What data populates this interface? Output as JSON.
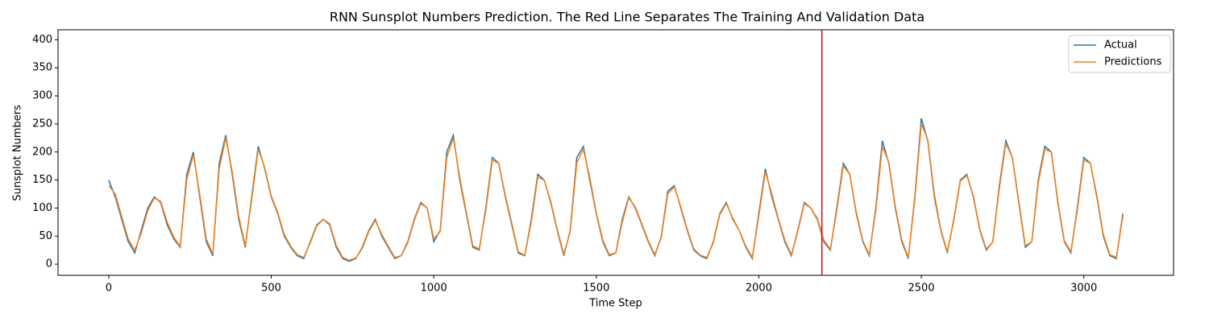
{
  "chart_data": {
    "type": "line",
    "title": "RNN Sunsplot Numbers Prediction.  The Red Line Separates The Training And Validation Data",
    "xlabel": "Time Step",
    "ylabel": "Sunsplot Numbers",
    "xlim": [
      -156,
      3276
    ],
    "ylim": [
      -19.9,
      417.8
    ],
    "xticks": [
      0,
      500,
      1000,
      1500,
      2000,
      2500,
      3000
    ],
    "yticks": [
      0,
      50,
      100,
      150,
      200,
      250,
      300,
      350,
      400
    ],
    "legend": "upper right",
    "vline": {
      "x": 2194,
      "color": "#e00000"
    },
    "x": [
      0,
      20,
      40,
      60,
      80,
      100,
      120,
      140,
      160,
      180,
      200,
      220,
      240,
      260,
      280,
      300,
      320,
      340,
      360,
      380,
      400,
      420,
      440,
      460,
      480,
      500,
      520,
      540,
      560,
      580,
      600,
      620,
      640,
      660,
      680,
      700,
      720,
      740,
      760,
      780,
      800,
      820,
      840,
      860,
      880,
      900,
      920,
      940,
      960,
      980,
      1000,
      1020,
      1040,
      1060,
      1080,
      1100,
      1120,
      1140,
      1160,
      1180,
      1200,
      1220,
      1240,
      1260,
      1280,
      1300,
      1320,
      1340,
      1360,
      1380,
      1400,
      1420,
      1440,
      1460,
      1480,
      1500,
      1520,
      1540,
      1560,
      1580,
      1600,
      1620,
      1640,
      1660,
      1680,
      1700,
      1720,
      1740,
      1760,
      1780,
      1800,
      1820,
      1840,
      1860,
      1880,
      1900,
      1920,
      1940,
      1960,
      1980,
      2000,
      2020,
      2040,
      2060,
      2080,
      2100,
      2120,
      2140,
      2160,
      2180,
      2200,
      2220,
      2240,
      2260,
      2280,
      2300,
      2320,
      2340,
      2360,
      2380,
      2400,
      2420,
      2440,
      2460,
      2480,
      2500,
      2520,
      2540,
      2560,
      2580,
      2600,
      2620,
      2640,
      2660,
      2680,
      2700,
      2720,
      2740,
      2760,
      2780,
      2800,
      2820,
      2840,
      2860,
      2880,
      2900,
      2920,
      2940,
      2960,
      2980,
      3000,
      3020,
      3040,
      3060,
      3080,
      3100,
      3120
    ],
    "series": [
      {
        "name": "Actual",
        "color": "#1f77b4",
        "values": [
          150,
          120,
          80,
          40,
          20,
          60,
          100,
          120,
          110,
          70,
          45,
          30,
          160,
          200,
          120,
          40,
          15,
          180,
          230,
          160,
          80,
          30,
          120,
          210,
          170,
          120,
          90,
          50,
          30,
          15,
          10,
          40,
          70,
          80,
          70,
          30,
          10,
          5,
          10,
          30,
          60,
          80,
          50,
          30,
          10,
          15,
          40,
          80,
          110,
          100,
          40,
          60,
          200,
          230,
          150,
          90,
          30,
          25,
          100,
          190,
          180,
          120,
          70,
          20,
          15,
          80,
          160,
          150,
          110,
          60,
          15,
          60,
          190,
          210,
          150,
          90,
          40,
          15,
          20,
          80,
          120,
          100,
          70,
          40,
          15,
          50,
          130,
          140,
          100,
          60,
          25,
          15,
          10,
          40,
          90,
          110,
          80,
          60,
          30,
          10,
          90,
          170,
          120,
          80,
          40,
          15,
          60,
          110,
          100,
          80,
          40,
          25,
          100,
          180,
          160,
          90,
          40,
          15,
          100,
          220,
          180,
          100,
          40,
          10,
          120,
          260,
          220,
          120,
          60,
          20,
          80,
          150,
          160,
          120,
          60,
          25,
          40,
          140,
          220,
          190,
          110,
          30,
          40,
          150,
          210,
          200,
          110,
          40,
          20,
          100,
          190,
          180,
          120,
          50,
          15,
          10,
          90
        ]
      },
      {
        "name": "Predictions",
        "color": "#ff7f0e",
        "values": [
          140,
          125,
          85,
          45,
          25,
          55,
          95,
          118,
          112,
          75,
          48,
          32,
          150,
          195,
          125,
          45,
          18,
          170,
          225,
          165,
          85,
          33,
          115,
          205,
          172,
          122,
          92,
          53,
          32,
          17,
          12,
          38,
          68,
          80,
          72,
          33,
          12,
          7,
          11,
          28,
          58,
          78,
          53,
          32,
          12,
          15,
          38,
          78,
          108,
          100,
          45,
          58,
          190,
          225,
          155,
          93,
          33,
          27,
          95,
          185,
          180,
          123,
          73,
          22,
          16,
          75,
          155,
          150,
          112,
          62,
          18,
          58,
          180,
          205,
          155,
          92,
          43,
          17,
          20,
          75,
          118,
          102,
          72,
          42,
          17,
          48,
          125,
          138,
          102,
          62,
          27,
          16,
          12,
          38,
          88,
          108,
          82,
          60,
          32,
          12,
          85,
          165,
          125,
          82,
          43,
          17,
          58,
          108,
          100,
          82,
          43,
          27,
          95,
          175,
          160,
          93,
          42,
          17,
          95,
          210,
          182,
          103,
          43,
          12,
          115,
          250,
          222,
          125,
          62,
          22,
          78,
          148,
          158,
          122,
          62,
          27,
          40,
          135,
          215,
          190,
          113,
          33,
          40,
          145,
          205,
          200,
          113,
          42,
          22,
          95,
          185,
          180,
          123,
          53,
          17,
          12,
          85
        ]
      }
    ]
  }
}
